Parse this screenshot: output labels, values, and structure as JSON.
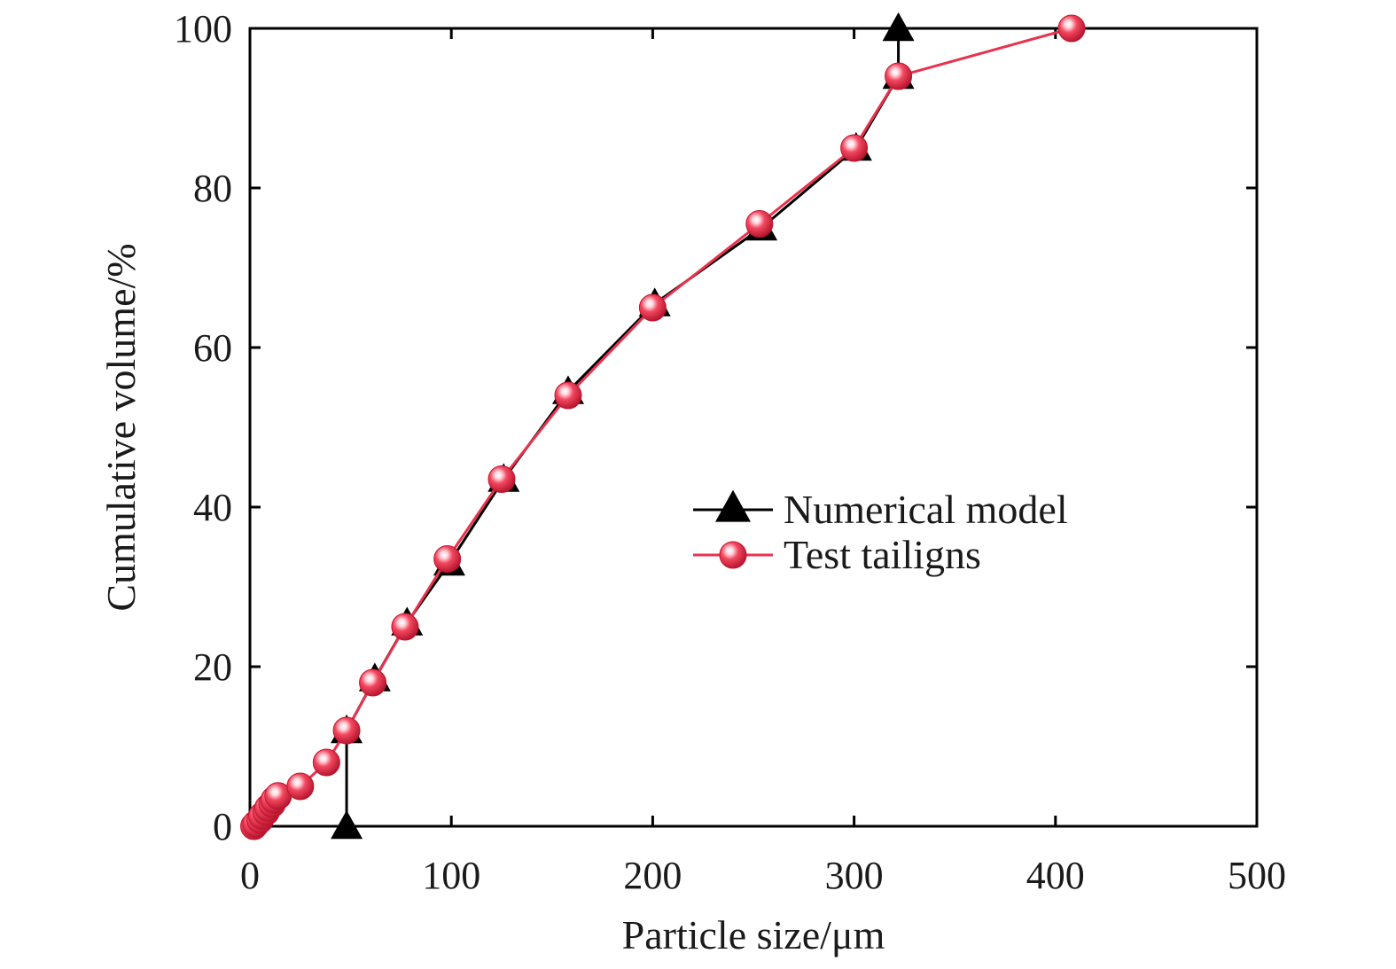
{
  "chart_data": {
    "type": "line",
    "xlabel": "Particle size/μm",
    "ylabel": "Cumulative volume/%",
    "xlim": [
      0,
      500
    ],
    "ylim": [
      0,
      100
    ],
    "xticks": [
      0,
      100,
      200,
      300,
      400,
      500
    ],
    "yticks": [
      0,
      20,
      40,
      60,
      80,
      100
    ],
    "grid": false,
    "legend_position": "center-right",
    "series": [
      {
        "name": "Numerical model",
        "marker": "triangle",
        "color": "#000000",
        "points": [
          [
            48,
            0
          ],
          [
            48,
            12
          ],
          [
            62,
            18.5
          ],
          [
            78,
            25.5
          ],
          [
            99,
            33
          ],
          [
            126,
            43.5
          ],
          [
            158,
            54.5
          ],
          [
            201,
            65.5
          ],
          [
            254,
            75
          ],
          [
            301,
            85
          ],
          [
            322,
            94
          ],
          [
            322,
            100
          ]
        ]
      },
      {
        "name": "Test tailigns",
        "marker": "circle",
        "color": "#e8334f",
        "points": [
          [
            2,
            0
          ],
          [
            3,
            0.3
          ],
          [
            5,
            0.8
          ],
          [
            6,
            1.3
          ],
          [
            8,
            1.8
          ],
          [
            9,
            2.3
          ],
          [
            11,
            2.8
          ],
          [
            12,
            3.3
          ],
          [
            14,
            3.8
          ],
          [
            25,
            5
          ],
          [
            38,
            8
          ],
          [
            48,
            12
          ],
          [
            61,
            18
          ],
          [
            77,
            25
          ],
          [
            98,
            33.5
          ],
          [
            125,
            43.5
          ],
          [
            158,
            54
          ],
          [
            200,
            65
          ],
          [
            253,
            75.5
          ],
          [
            300,
            85
          ],
          [
            322,
            94
          ],
          [
            408,
            100
          ]
        ]
      }
    ]
  }
}
